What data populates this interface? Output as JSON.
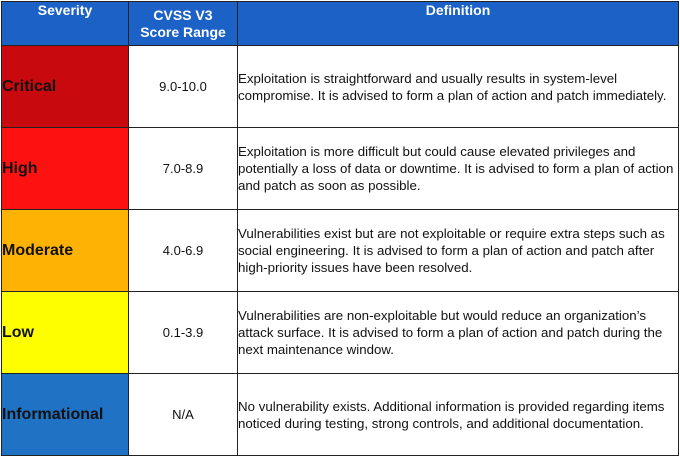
{
  "headers": {
    "severity": "Severity",
    "cvss_line1": "CVSS V3",
    "cvss_line2": "Score Range",
    "definition": "Definition"
  },
  "rows": [
    {
      "severity": "Critical",
      "score": "9.0-10.0",
      "definition": "Exploitation is straightforward and usually results in system-level compromise.  It is advised to form a plan of action and patch immediately.",
      "color": "#c80a0e"
    },
    {
      "severity": "High",
      "score": "7.0-8.9",
      "definition": "Exploitation is more difficult but could cause elevated privileges and potentially a loss of data or downtime.  It is advised to form a plan of action and patch as soon as possible.",
      "color": "#fe1111"
    },
    {
      "severity": "Moderate",
      "score": "4.0-6.9",
      "definition": "Vulnerabilities exist but are not exploitable or require extra steps such as social engineering.  It is advised to form a plan of action and patch after high-priority issues have been resolved.",
      "color": "#feb304"
    },
    {
      "severity": "Low",
      "score": "0.1-3.9",
      "definition": "Vulnerabilities are non-exploitable but would reduce an organization’s attack surface.  It is advised to form a plan of action and patch during the next maintenance window.",
      "color": "#fefe00"
    },
    {
      "severity": "Informational",
      "score": "N/A",
      "definition": "No vulnerability exists.  Additional information is provided regarding items noticed during testing, strong controls, and additional documentation.",
      "color": "#1f72c4"
    }
  ]
}
